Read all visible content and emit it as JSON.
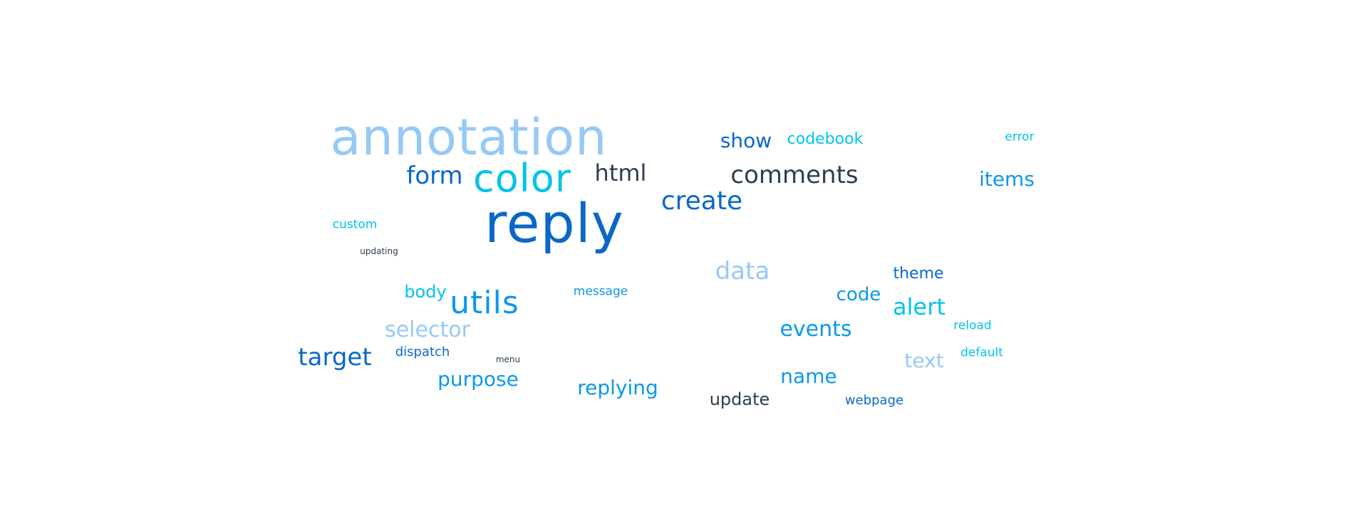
{
  "word_cloud": {
    "colors": {
      "dark_navy": "#2d3e50",
      "deep_blue": "#0a67c9",
      "mid_blue": "#0b98ea",
      "cyan": "#00c3ee",
      "light_blue": "#96c9f6"
    },
    "words": [
      {
        "text": "annotation",
        "color": "#96c9f6"
      },
      {
        "text": "reply",
        "color": "#0a67c9"
      },
      {
        "text": "color",
        "color": "#00c3ee"
      },
      {
        "text": "form",
        "color": "#0a67c9"
      },
      {
        "text": "html",
        "color": "#2d3e50"
      },
      {
        "text": "show",
        "color": "#0a67c9"
      },
      {
        "text": "codebook",
        "color": "#00c3ee"
      },
      {
        "text": "error",
        "color": "#00c3ee"
      },
      {
        "text": "comments",
        "color": "#2d3e50"
      },
      {
        "text": "items",
        "color": "#0b98ea"
      },
      {
        "text": "create",
        "color": "#0a67c9"
      },
      {
        "text": "custom",
        "color": "#00c3ee"
      },
      {
        "text": "updating",
        "color": "#2d3e50"
      },
      {
        "text": "data",
        "color": "#96c9f6"
      },
      {
        "text": "theme",
        "color": "#0a67c9"
      },
      {
        "text": "body",
        "color": "#00c3ee"
      },
      {
        "text": "utils",
        "color": "#0b98ea"
      },
      {
        "text": "message",
        "color": "#0b98ea"
      },
      {
        "text": "code",
        "color": "#0b98ea"
      },
      {
        "text": "alert",
        "color": "#00c3ee"
      },
      {
        "text": "selector",
        "color": "#96c9f6"
      },
      {
        "text": "events",
        "color": "#0b98ea"
      },
      {
        "text": "reload",
        "color": "#00c3ee"
      },
      {
        "text": "target",
        "color": "#0a67c9"
      },
      {
        "text": "dispatch",
        "color": "#0a67c9"
      },
      {
        "text": "menu",
        "color": "#2d3e50"
      },
      {
        "text": "text",
        "color": "#96c9f6"
      },
      {
        "text": "default",
        "color": "#00c3ee"
      },
      {
        "text": "purpose",
        "color": "#0b98ea"
      },
      {
        "text": "name",
        "color": "#0b98ea"
      },
      {
        "text": "replying",
        "color": "#0b98ea"
      },
      {
        "text": "update",
        "color": "#2d3e50"
      },
      {
        "text": "webpage",
        "color": "#0a67c9"
      }
    ]
  }
}
